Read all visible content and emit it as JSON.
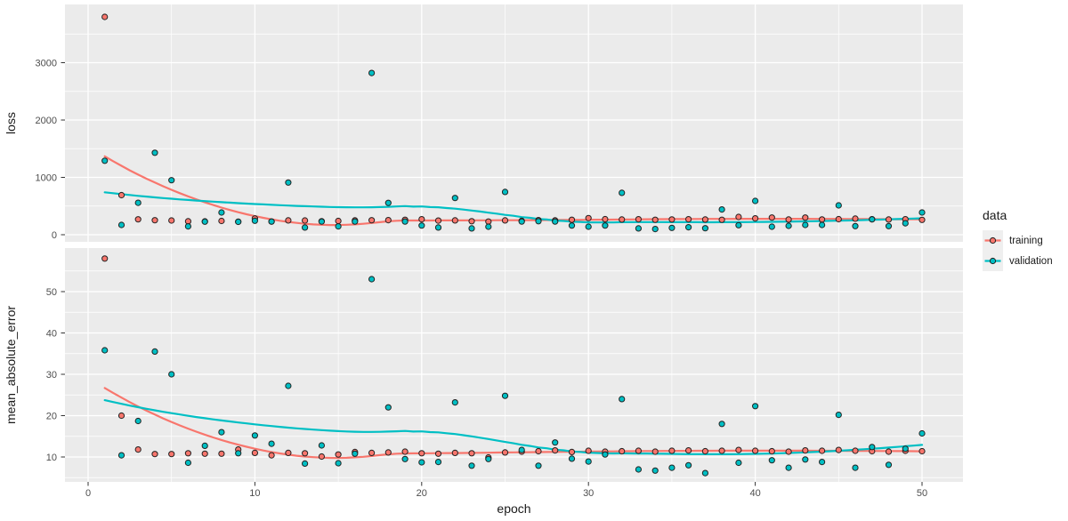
{
  "chart_data": {
    "type": "scatter",
    "x_label": "epoch",
    "x": [
      1,
      2,
      3,
      4,
      5,
      6,
      7,
      8,
      9,
      10,
      11,
      12,
      13,
      14,
      15,
      16,
      17,
      18,
      19,
      20,
      21,
      22,
      23,
      24,
      25,
      26,
      27,
      28,
      29,
      30,
      31,
      32,
      33,
      34,
      35,
      36,
      37,
      38,
      39,
      40,
      41,
      42,
      43,
      44,
      45,
      46,
      47,
      48,
      49,
      50
    ],
    "x_ticks": [
      0,
      10,
      20,
      30,
      40,
      50
    ],
    "x_minor_ticks": [
      5,
      15,
      25,
      35,
      45
    ],
    "x_range": [
      -1.45,
      52.45
    ],
    "legend": {
      "title": "data",
      "position": "right",
      "items": [
        {
          "label": "training",
          "color": "#F8766D"
        },
        {
          "label": "validation",
          "color": "#00BFC4"
        }
      ]
    },
    "smoothing": {
      "method": "loess",
      "span": 0.75,
      "degree": 2
    },
    "facets": [
      {
        "y_label": "loss",
        "y_ticks": [
          0,
          1000,
          2000,
          3000
        ],
        "y_minor_ticks": [
          500,
          1500,
          2500,
          3500
        ],
        "y_range": [
          -145,
          4016
        ],
        "series": [
          {
            "name": "training",
            "color": "#F8766D",
            "values": [
              3798,
              690,
              268,
              253,
              248,
              234,
              232,
              240,
              228,
              284,
              230,
              250,
              248,
              235,
              240,
              250,
              252,
              255,
              260,
              270,
              246,
              250,
              236,
              230,
              250,
              242,
              255,
              250,
              260,
              290,
              272,
              265,
              270,
              260,
              266,
              270,
              265,
              260,
              310,
              285,
              300,
              265,
              300,
              266,
              272,
              280,
              270,
              265,
              270,
              259
            ]
          },
          {
            "name": "validation",
            "color": "#00BFC4",
            "values": [
              1290,
              170,
              557,
              1430,
              950,
              145,
              228,
              388,
              225,
              243,
              230,
              910,
              125,
              230,
              145,
              230,
              2820,
              555,
              230,
              160,
              125,
              640,
              110,
              140,
              745,
              230,
              235,
              230,
              160,
              140,
              160,
              730,
              110,
              100,
              120,
              130,
              113,
              440,
              166,
              589,
              140,
              155,
              170,
              170,
              512,
              150,
              268,
              150,
              200,
              388
            ]
          }
        ]
      },
      {
        "y_label": "mean_absolute_error",
        "y_ticks": [
          10,
          20,
          30,
          40,
          50
        ],
        "y_minor_ticks": [
          5,
          15,
          25,
          35,
          45,
          55
        ],
        "y_range": [
          3.8,
          60.5
        ],
        "series": [
          {
            "name": "training",
            "color": "#F8766D",
            "values": [
              58,
              20,
              11.8,
              10.7,
              10.7,
              10.9,
              10.8,
              10.8,
              11.8,
              11,
              10.4,
              11,
              10.9,
              10.1,
              10.6,
              11.2,
              11,
              11.1,
              11.3,
              10.9,
              10.8,
              11,
              10.9,
              9.9,
              11.1,
              11.3,
              11.4,
              11.6,
              11.2,
              11.5,
              11.3,
              11.4,
              11.5,
              11.3,
              11.5,
              11.6,
              11.4,
              11.5,
              11.7,
              11.5,
              11.4,
              11.3,
              11.6,
              11.5,
              11.7,
              11.5,
              11.4,
              11.3,
              11.5,
              11.4
            ]
          },
          {
            "name": "validation",
            "color": "#00BFC4",
            "values": [
              35.8,
              10.4,
              18.7,
              35.5,
              30,
              8.6,
              12.7,
              16,
              10.9,
              15.2,
              13.2,
              27.2,
              8.4,
              12.8,
              8.5,
              10.8,
              53,
              22,
              9.5,
              8.7,
              8.8,
              23.2,
              7.9,
              9.5,
              24.8,
              11.7,
              7.9,
              13.5,
              9.6,
              8.9,
              10.6,
              24,
              7,
              6.7,
              7.4,
              8,
              6.1,
              18,
              8.6,
              22.3,
              9.2,
              7.4,
              9.4,
              8.8,
              20.2,
              7.4,
              12.4,
              8.1,
              12,
              15.7
            ]
          }
        ]
      }
    ],
    "style": {
      "panel_bg": "#EBEBEB",
      "grid_major": "#FFFFFF",
      "grid_minor": "#FFFFFF",
      "axis_text": "#4D4D4D",
      "axis_title": "#1A1A1A",
      "tick_mark": "#333333",
      "point_stroke": "#222222",
      "legend_key_bg": "#EFEFEF"
    }
  }
}
